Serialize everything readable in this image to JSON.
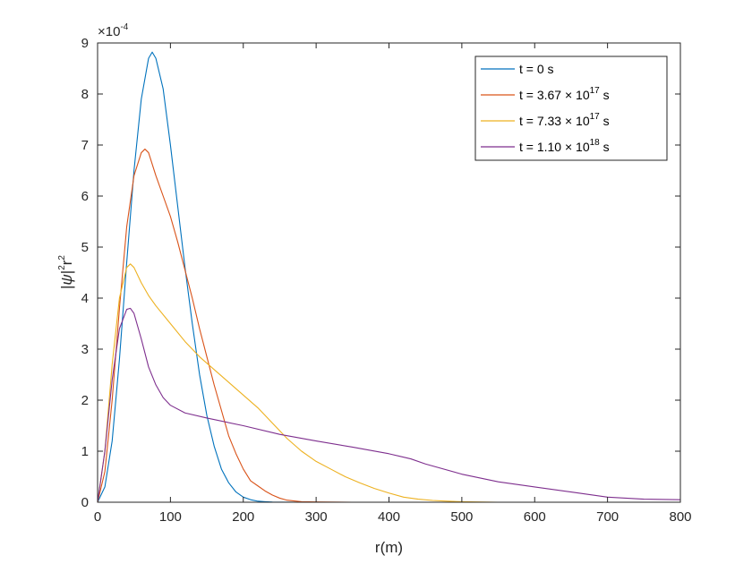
{
  "chart_data": {
    "type": "line",
    "xlabel": "r(m)",
    "ylabel_parts": [
      "|",
      "ψ",
      "|",
      "2",
      "r",
      "2"
    ],
    "exponent_label": {
      "base": "×10",
      "exp": "-4"
    },
    "xlim": [
      0,
      800
    ],
    "ylim": [
      0,
      9
    ],
    "xticks": [
      "0",
      "100",
      "200",
      "300",
      "400",
      "500",
      "600",
      "700",
      "800"
    ],
    "xtick_values": [
      0,
      100,
      200,
      300,
      400,
      500,
      600,
      700,
      800
    ],
    "yticks": [
      "0",
      "1",
      "2",
      "3",
      "4",
      "5",
      "6",
      "7",
      "8",
      "9"
    ],
    "ytick_values": [
      0,
      1,
      2,
      3,
      4,
      5,
      6,
      7,
      8,
      9
    ],
    "grid": false,
    "legend_position": "top-right",
    "series": [
      {
        "name": "t = 0 s",
        "legend": {
          "pre": "t = 0 s",
          "exp": "",
          "post": ""
        },
        "color": "#0072BD",
        "x": [
          0,
          10,
          20,
          30,
          40,
          50,
          60,
          70,
          75,
          80,
          90,
          100,
          110,
          120,
          130,
          140,
          150,
          160,
          170,
          180,
          190,
          200,
          210,
          220,
          230,
          240,
          260,
          280,
          300,
          350,
          400,
          800
        ],
        "y": [
          0,
          0.3,
          1.2,
          2.8,
          4.7,
          6.5,
          7.9,
          8.7,
          8.82,
          8.7,
          8.1,
          7.0,
          5.8,
          4.6,
          3.5,
          2.5,
          1.7,
          1.1,
          0.65,
          0.38,
          0.2,
          0.1,
          0.05,
          0.02,
          0.01,
          0.003,
          0.001,
          0,
          0,
          0,
          0,
          0
        ]
      },
      {
        "name": "t = 3.67 × 10^17 s",
        "legend": {
          "pre": "t = 3.67 × 10",
          "exp": "17",
          "post": " s"
        },
        "color": "#D95319",
        "x": [
          0,
          10,
          20,
          30,
          40,
          50,
          60,
          65,
          70,
          80,
          90,
          100,
          110,
          120,
          130,
          140,
          150,
          160,
          170,
          180,
          190,
          200,
          210,
          220,
          230,
          240,
          250,
          260,
          280,
          300,
          350,
          400,
          800
        ],
        "y": [
          0,
          0.6,
          2.0,
          3.8,
          5.4,
          6.4,
          6.85,
          6.92,
          6.85,
          6.4,
          6.0,
          5.6,
          5.1,
          4.55,
          4.0,
          3.4,
          2.85,
          2.3,
          1.8,
          1.3,
          0.95,
          0.65,
          0.42,
          0.32,
          0.22,
          0.14,
          0.08,
          0.04,
          0.01,
          0.005,
          0,
          0,
          0
        ]
      },
      {
        "name": "t = 7.33 × 10^17 s",
        "legend": {
          "pre": "t = 7.33 × 10",
          "exp": "17",
          "post": " s"
        },
        "color": "#EDB120",
        "x": [
          0,
          10,
          20,
          30,
          40,
          45,
          50,
          60,
          70,
          80,
          100,
          120,
          140,
          160,
          180,
          200,
          220,
          240,
          260,
          280,
          300,
          320,
          340,
          360,
          380,
          400,
          420,
          440,
          460,
          480,
          500,
          550,
          800
        ],
        "y": [
          0,
          1.0,
          2.7,
          4.0,
          4.6,
          4.67,
          4.6,
          4.3,
          4.05,
          3.85,
          3.5,
          3.15,
          2.85,
          2.6,
          2.35,
          2.1,
          1.85,
          1.55,
          1.25,
          1.0,
          0.8,
          0.65,
          0.5,
          0.38,
          0.27,
          0.18,
          0.1,
          0.06,
          0.035,
          0.02,
          0.01,
          0,
          0
        ]
      },
      {
        "name": "t = 1.10 × 10^18 s",
        "legend": {
          "pre": "t = 1.10 × 10",
          "exp": "18",
          "post": " s"
        },
        "color": "#7E2F8E",
        "x": [
          0,
          10,
          20,
          30,
          40,
          45,
          50,
          60,
          70,
          80,
          90,
          100,
          120,
          150,
          200,
          250,
          300,
          350,
          400,
          430,
          450,
          500,
          550,
          600,
          650,
          700,
          750,
          800
        ],
        "y": [
          0,
          1.0,
          2.4,
          3.4,
          3.78,
          3.8,
          3.7,
          3.2,
          2.65,
          2.3,
          2.05,
          1.9,
          1.75,
          1.65,
          1.5,
          1.33,
          1.2,
          1.08,
          0.95,
          0.85,
          0.75,
          0.55,
          0.4,
          0.3,
          0.2,
          0.1,
          0.06,
          0.05
        ]
      }
    ]
  }
}
